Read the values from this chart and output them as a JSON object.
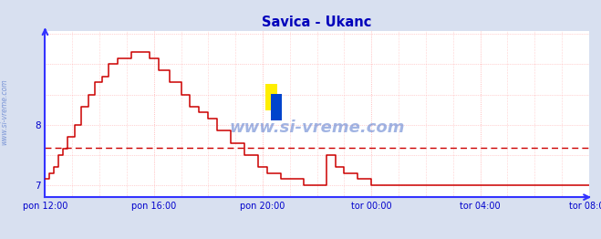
{
  "title": "Savica - Ukanc",
  "title_color": "#0000bb",
  "bg_color": "#d8e0f0",
  "plot_bg_color": "#ffffff",
  "grid_color": "#ffaaaa",
  "axis_color": "#3333ff",
  "line_color": "#cc0000",
  "avg_line_color": "#cc0000",
  "watermark_text_color": "#5577cc",
  "side_text_color": "#5577cc",
  "ylabel_color": "#0000cc",
  "xlabel_color": "#0000cc",
  "ylim": [
    6.8,
    9.55
  ],
  "ytick_vals": [
    7,
    8
  ],
  "ytick_labels": [
    "7",
    "8"
  ],
  "xtick_positions": [
    0,
    48,
    96,
    144,
    192,
    240
  ],
  "xtick_labels": [
    "pon 12:00",
    "pon 16:00",
    "pon 20:00",
    "tor 00:00",
    "tor 04:00",
    "tor 08:00"
  ],
  "avg_value": 7.62,
  "n_points": 241,
  "xlim": [
    0,
    240
  ]
}
